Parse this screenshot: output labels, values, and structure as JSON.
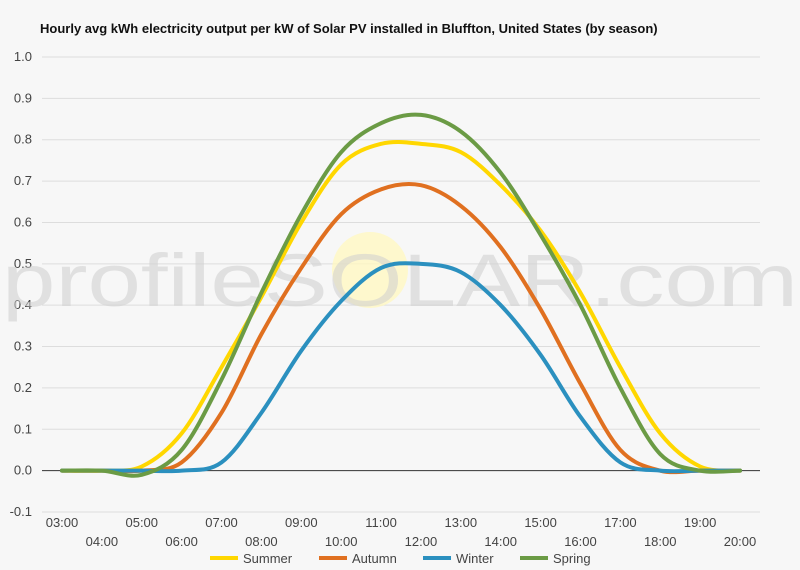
{
  "chart_data": {
    "type": "line",
    "title": "Hourly avg kWh electricity output per kW of Solar PV installed in Bluffton, United States (by season)",
    "watermark": "profileSOLAR.com",
    "xlabel": "",
    "ylabel": "",
    "ylim": [
      -0.1,
      1.0
    ],
    "yticks": [
      "-0.1",
      "0.0",
      "0.1",
      "0.2",
      "0.3",
      "0.4",
      "0.5",
      "0.6",
      "0.7",
      "0.8",
      "0.9",
      "1.0"
    ],
    "x": [
      "03:00",
      "04:00",
      "05:00",
      "06:00",
      "07:00",
      "08:00",
      "09:00",
      "10:00",
      "11:00",
      "12:00",
      "13:00",
      "14:00",
      "15:00",
      "16:00",
      "17:00",
      "18:00",
      "19:00",
      "20:00"
    ],
    "grid": true,
    "legend_position": "bottom",
    "series": [
      {
        "name": "Summer",
        "color": "#ffd700",
        "values": [
          0.0,
          0.0,
          0.01,
          0.09,
          0.25,
          0.42,
          0.6,
          0.74,
          0.79,
          0.79,
          0.77,
          0.69,
          0.58,
          0.43,
          0.25,
          0.09,
          0.01,
          0.0
        ]
      },
      {
        "name": "Autumn",
        "color": "#e07020",
        "values": [
          0.0,
          0.0,
          0.0,
          0.02,
          0.14,
          0.33,
          0.49,
          0.62,
          0.68,
          0.69,
          0.64,
          0.54,
          0.39,
          0.21,
          0.05,
          0.0,
          0.0,
          0.0
        ]
      },
      {
        "name": "Winter",
        "color": "#2b90bf",
        "values": [
          0.0,
          0.0,
          0.0,
          0.0,
          0.02,
          0.14,
          0.29,
          0.41,
          0.49,
          0.5,
          0.48,
          0.4,
          0.28,
          0.13,
          0.02,
          0.0,
          0.0,
          0.0
        ]
      },
      {
        "name": "Spring",
        "color": "#6b9b45",
        "values": [
          0.0,
          0.0,
          -0.01,
          0.05,
          0.22,
          0.43,
          0.62,
          0.77,
          0.84,
          0.86,
          0.82,
          0.72,
          0.57,
          0.4,
          0.2,
          0.04,
          0.0,
          0.0
        ]
      }
    ]
  }
}
